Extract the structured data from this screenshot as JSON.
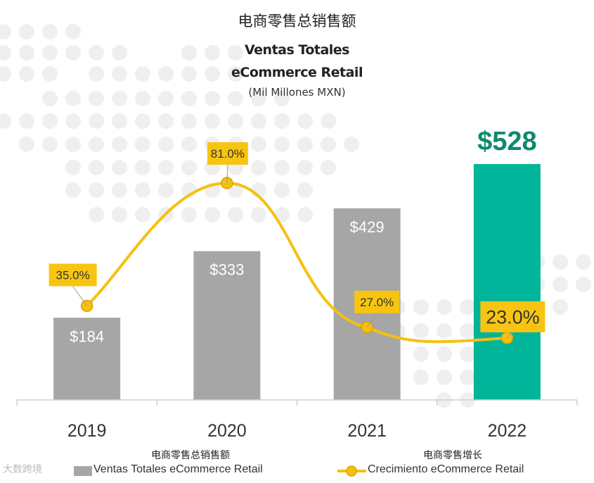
{
  "chart_data": {
    "type": "bar",
    "title_cn": "电商零售总销售额",
    "title_line1": "Ventas Totales",
    "title_line2": "eCommerce Retail",
    "subtitle": "(Mil Millones MXN)",
    "categories": [
      "2019",
      "2020",
      "2021",
      "2022"
    ],
    "series": [
      {
        "name": "Ventas Totales eCommerce Retail",
        "name_cn": "电商零售总销售额",
        "type": "bar",
        "values": [
          184,
          333,
          429,
          528
        ],
        "labels": [
          "$184",
          "$333",
          "$429",
          "$528"
        ],
        "colors": [
          "#a6a6a6",
          "#a6a6a6",
          "#a6a6a6",
          "#00b59a"
        ],
        "highlight_label_color": "#0e8a6d"
      },
      {
        "name": "Crecimiento eCommerce Retail",
        "name_cn": "电商零售增长",
        "type": "line",
        "values": [
          35.0,
          81.0,
          27.0,
          23.0
        ],
        "labels": [
          "35.0%",
          "81.0%",
          "27.0%",
          "23.0%"
        ],
        "color": "#f5c010",
        "label_bg": "#f7c511"
      }
    ],
    "grid": false,
    "legend_position": "bottom"
  },
  "watermark": "大数跨境"
}
